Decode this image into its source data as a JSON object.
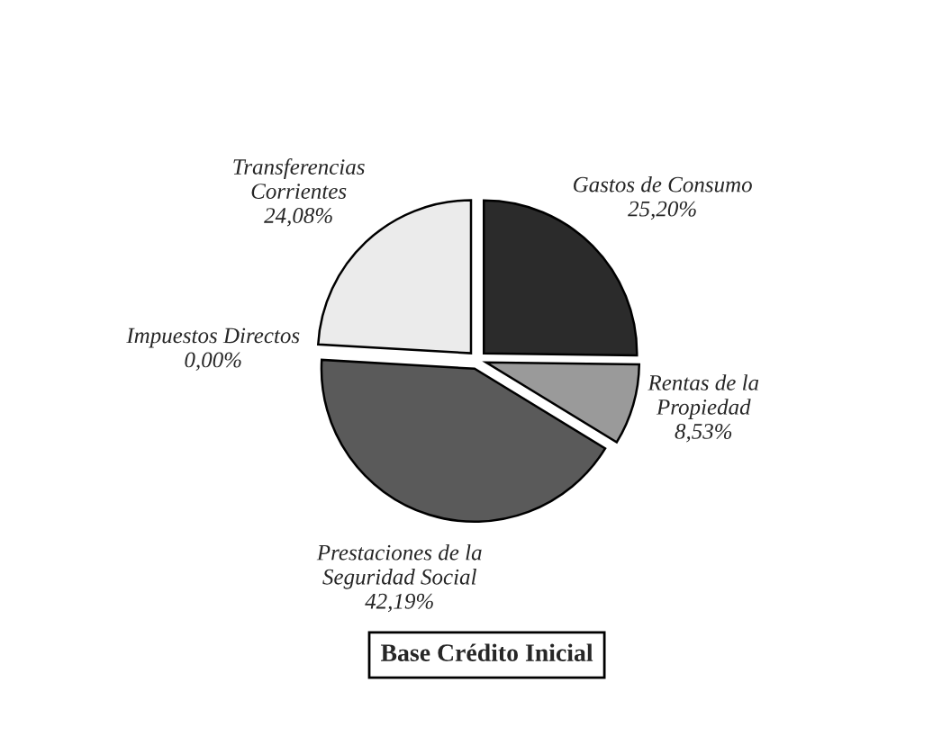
{
  "chart_data": {
    "type": "pie",
    "title": "Base Crédito Inicial",
    "categories": [
      "Gastos de Consumo",
      "Rentas de la\nPropiedad",
      "Prestaciones de la\nSeguridad Social",
      "Impuestos Directos",
      "Transferencias\nCorrientes"
    ],
    "values": [
      25.2,
      8.53,
      42.19,
      0.0,
      24.08
    ],
    "value_labels": [
      "25,20%",
      "8,53%",
      "42,19%",
      "0,00%",
      "24,08%"
    ],
    "colors": [
      "#2b2b2b",
      "#9a9a9a",
      "#5a5a5a",
      "#808080",
      "#ebebeb"
    ]
  }
}
